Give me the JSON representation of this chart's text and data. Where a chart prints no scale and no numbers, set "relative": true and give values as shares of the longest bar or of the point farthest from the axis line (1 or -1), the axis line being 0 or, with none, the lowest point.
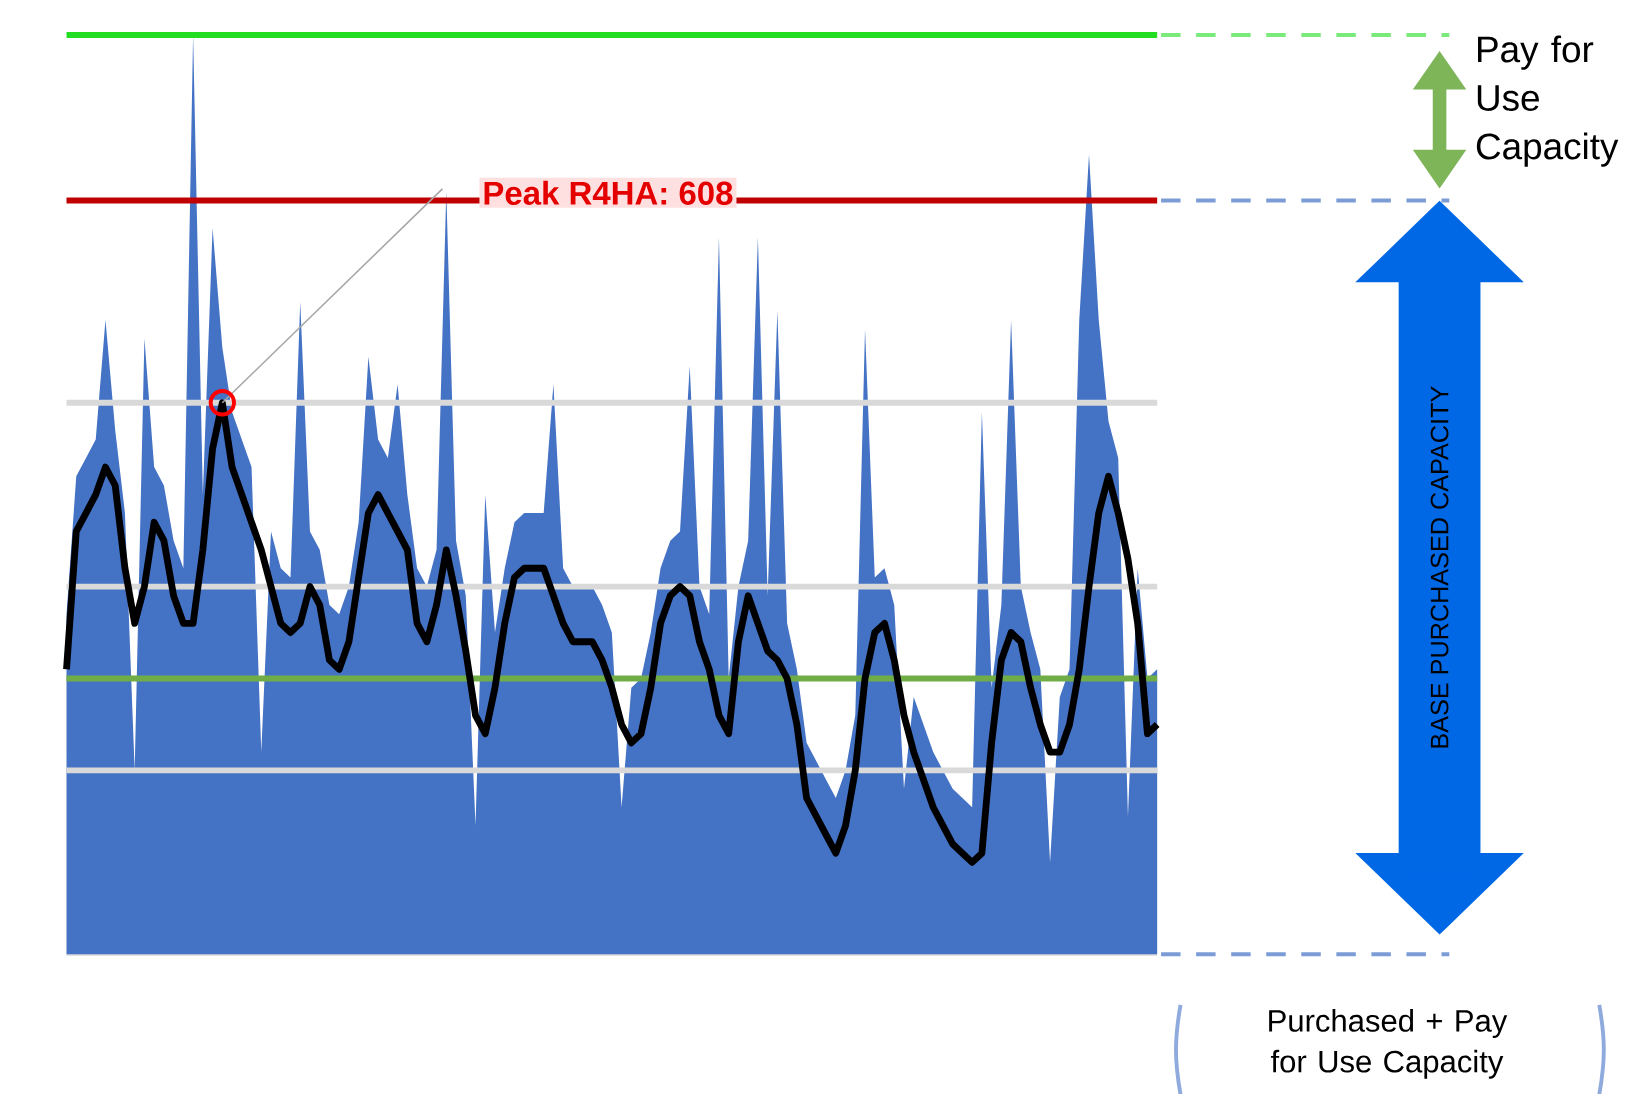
{
  "chart_data": {
    "type": "line",
    "relative": true,
    "categories": [
      null,
      null,
      null,
      null,
      null,
      null,
      null,
      null,
      null,
      null,
      null,
      null,
      null,
      null,
      null,
      null,
      null,
      null,
      null,
      null,
      null,
      null,
      null,
      null,
      null,
      null,
      null,
      null,
      null,
      null,
      null,
      null,
      null,
      null,
      null,
      null,
      null,
      null,
      null,
      null,
      null,
      null,
      null,
      null,
      null,
      null,
      null,
      null,
      null,
      null,
      null,
      null,
      null,
      null,
      null,
      null,
      null,
      null,
      null,
      null,
      null,
      null,
      null,
      null,
      null,
      null,
      null,
      null,
      null,
      null,
      null,
      null,
      null,
      null,
      null,
      null,
      null,
      null,
      null,
      null,
      null,
      null,
      null,
      null,
      null,
      null,
      null,
      null,
      null,
      null,
      null,
      null,
      null,
      null,
      null,
      null,
      null,
      null,
      null,
      null,
      null,
      null,
      null,
      null,
      null,
      null,
      null,
      null,
      null,
      null,
      null,
      null,
      null
    ],
    "series": [
      {
        "type": "area",
        "color": "#4472c4",
        "values": [
          0.37,
          0.52,
          0.54,
          0.56,
          0.69,
          0.57,
          0.48,
          0.2,
          0.67,
          0.53,
          0.51,
          0.45,
          0.42,
          1.0,
          0.5,
          0.79,
          0.66,
          0.59,
          0.56,
          0.53,
          0.22,
          0.46,
          0.42,
          0.41,
          0.71,
          0.46,
          0.44,
          0.38,
          0.37,
          0.4,
          0.47,
          0.65,
          0.56,
          0.54,
          0.62,
          0.5,
          0.42,
          0.4,
          0.44,
          0.83,
          0.45,
          0.39,
          0.14,
          0.5,
          0.35,
          0.42,
          0.47,
          0.48,
          0.48,
          0.48,
          0.62,
          0.42,
          0.4,
          0.4,
          0.4,
          0.38,
          0.35,
          0.16,
          0.29,
          0.3,
          0.35,
          0.42,
          0.45,
          0.46,
          0.64,
          0.4,
          0.37,
          0.78,
          0.3,
          0.4,
          0.45,
          0.78,
          0.39,
          0.7,
          0.36,
          0.31,
          0.23,
          0.21,
          0.19,
          0.17,
          0.2,
          0.26,
          0.68,
          0.41,
          0.42,
          0.38,
          0.18,
          0.28,
          0.25,
          0.22,
          0.2,
          0.18,
          0.17,
          0.16,
          0.59,
          0.29,
          0.38,
          0.69,
          0.4,
          0.35,
          0.31,
          0.1,
          0.28,
          0.31,
          0.69,
          0.87,
          0.69,
          0.58,
          0.54,
          0.15,
          0.42,
          0.3,
          0.31
        ]
      },
      {
        "color": "#000000",
        "values": [
          0.31,
          0.46,
          0.48,
          0.5,
          0.53,
          0.51,
          0.42,
          0.36,
          0.4,
          0.47,
          0.45,
          0.39,
          0.36,
          0.36,
          0.44,
          0.55,
          0.6,
          0.53,
          0.5,
          0.47,
          0.44,
          0.4,
          0.36,
          0.35,
          0.36,
          0.4,
          0.38,
          0.32,
          0.31,
          0.34,
          0.41,
          0.48,
          0.5,
          0.48,
          0.46,
          0.44,
          0.36,
          0.34,
          0.38,
          0.44,
          0.39,
          0.33,
          0.26,
          0.24,
          0.29,
          0.36,
          0.41,
          0.42,
          0.42,
          0.42,
          0.39,
          0.36,
          0.34,
          0.34,
          0.34,
          0.32,
          0.29,
          0.25,
          0.23,
          0.24,
          0.29,
          0.36,
          0.39,
          0.4,
          0.39,
          0.34,
          0.31,
          0.26,
          0.24,
          0.34,
          0.39,
          0.36,
          0.33,
          0.32,
          0.3,
          0.25,
          0.17,
          0.15,
          0.13,
          0.11,
          0.14,
          0.2,
          0.3,
          0.35,
          0.36,
          0.32,
          0.26,
          0.22,
          0.19,
          0.16,
          0.14,
          0.12,
          0.11,
          0.1,
          0.11,
          0.23,
          0.32,
          0.35,
          0.34,
          0.29,
          0.25,
          0.22,
          0.22,
          0.25,
          0.31,
          0.4,
          0.48,
          0.52,
          0.48,
          0.43,
          0.36,
          0.24,
          0.25
        ]
      }
    ],
    "ref_lines": [
      {
        "axis": "y",
        "value": 0.2,
        "color": "#d9d9d9"
      },
      {
        "axis": "y",
        "value": 0.4,
        "color": "#d9d9d9"
      },
      {
        "axis": "y",
        "value": 0.6,
        "color": "#d9d9d9"
      },
      {
        "axis": "y",
        "value": 1.0,
        "color": "#22dd22"
      },
      {
        "axis": "y",
        "value": 0.82,
        "color": "#c00000"
      },
      {
        "axis": "y",
        "value": 0.3,
        "color": "#70ad47"
      }
    ],
    "annotations": [
      "Peak R4HA: 608",
      "Pay for Use Capacity",
      "BASE PURCHASED CAPACITY",
      "Purchased + Pay for Use Capacity"
    ]
  }
}
